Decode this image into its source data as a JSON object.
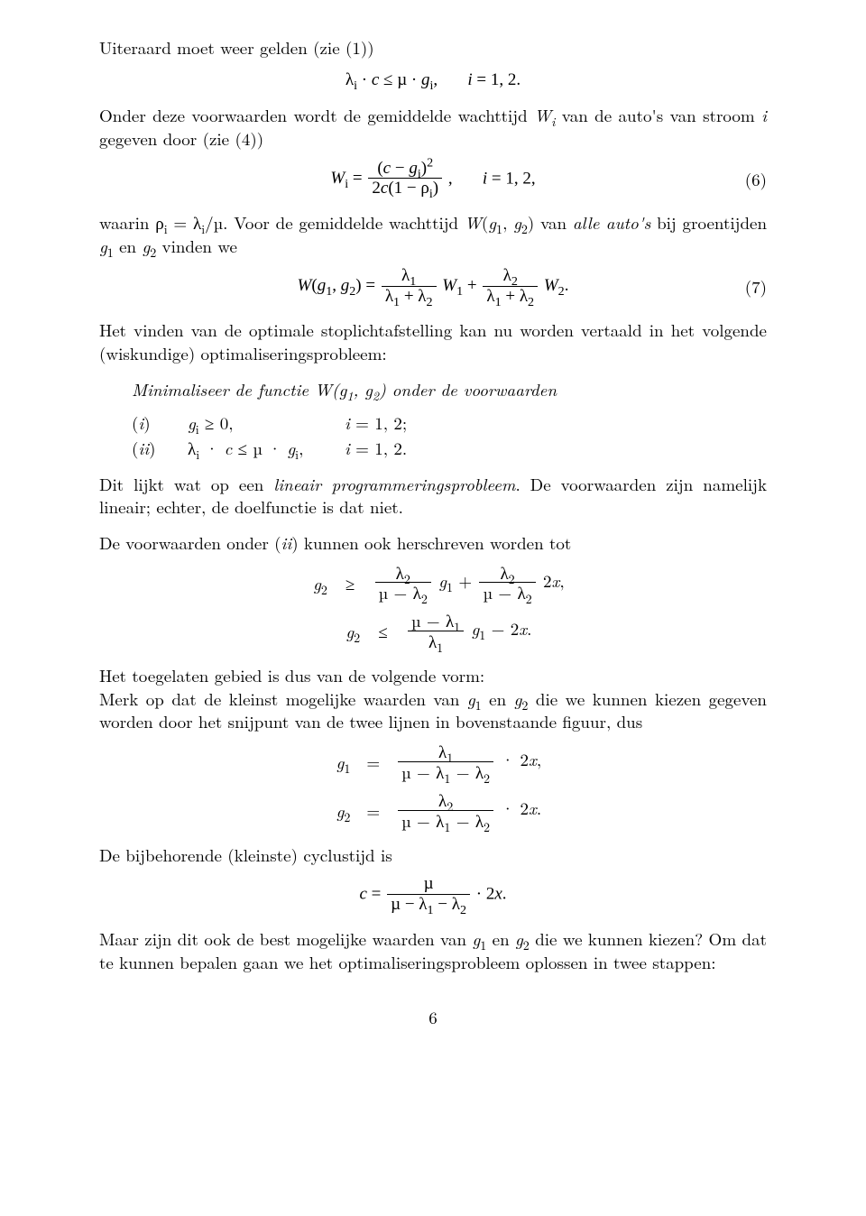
{
  "p1": "Uiteraard moet weer gelden (zie (1))",
  "eq1": {
    "body": "λ<sub>i</sub> · <span class=\"italic\">c</span> ≤ µ · <span class=\"italic\">g</span><sub>i</sub>,&nbsp;&nbsp;&nbsp;&nbsp;&nbsp;&nbsp; <span class=\"italic\">i</span> = 1, 2."
  },
  "p2_pre": "Onder deze voorwaarden wordt de gemiddelde wachttijd ",
  "p2_W": "W<sub>i</sub>",
  "p2_mid": " van de auto's van stroom ",
  "p2_i": "i",
  "p2_post": " gegeven door (zie (4))",
  "eq2": {
    "lhs": "<span class=\"italic\">W</span><sub>i</sub> = ",
    "frac_num": "(<span class=\"italic\">c</span> − <span class=\"italic\">g</span><sub>i</sub>)<sup>2</sup>",
    "frac_den": "2<span class=\"italic\">c</span>(1 − ρ<sub>i</sub>)",
    "rhs": ",&nbsp;&nbsp;&nbsp;&nbsp;&nbsp;&nbsp; <span class=\"italic\">i</span> = 1, 2,",
    "num": "(6)"
  },
  "p3a": "waarin ρ<sub>i</sub> = λ<sub>i</sub>/µ. Voor de gemiddelde wachttijd <span class=\"italic\">W</span>(<span class=\"italic\">g</span><sub>1</sub>, <span class=\"italic\">g</span><sub>2</sub>) van <span class=\"italic\">alle auto's</span> bij groentijden <span class=\"italic\">g</span><sub>1</sub> en <span class=\"italic\">g</span><sub>2</sub> vinden we",
  "eq3": {
    "lhs": "<span class=\"italic\">W</span>(<span class=\"italic\">g</span><sub>1</sub>, <span class=\"italic\">g</span><sub>2</sub>) = ",
    "f1_num": "λ<sub>1</sub>",
    "f1_den": "λ<sub>1</sub> + λ<sub>2</sub>",
    "mid1": "<span class=\"italic\">W</span><sub>1</sub> + ",
    "f2_num": "λ<sub>2</sub>",
    "f2_den": "λ<sub>1</sub> + λ<sub>2</sub>",
    "rhs": "<span class=\"italic\">W</span><sub>2</sub>.",
    "num": "(7)"
  },
  "p4": "Het vinden van de optimale stoplichtafstelling kan nu worden vertaald in het volgende (wiskundige) optimaliseringsprobleem:",
  "minim": "Minimaliseer de functie <span class=\"italic\">W</span>(<span class=\"italic\">g</span><sub>1</sub>, <span class=\"italic\">g</span><sub>2</sub>) onder de voorwaarden",
  "cond": [
    {
      "label": "(<span class=\"italic\">i</span>)",
      "expr": "<span class=\"italic\">g</span><sub>i</sub> ≥ 0,",
      "range": "<span class=\"italic\">i</span> = 1, 2;"
    },
    {
      "label": "(<span class=\"italic\">ii</span>)",
      "expr": "λ<sub>i</sub> · <span class=\"italic\">c</span> ≤ µ · <span class=\"italic\">g</span><sub>i</sub>,",
      "range": "<span class=\"italic\">i</span> = 1, 2."
    }
  ],
  "p5": "Dit lijkt wat op een <span class=\"italic\">lineair programmeringsprobleem</span>. De voorwaarden zijn namelijk lineair; echter, de doelfunctie is dat niet.",
  "p6": "De voorwaarden onder (<span class=\"italic\">ii</span>) kunnen ook herschreven worden tot",
  "eq4": {
    "r1": {
      "l": "<span class=\"italic\">g</span><sub>2</sub>",
      "m": "≥",
      "f1_num": "λ<sub>2</sub>",
      "f1_den": "µ − λ<sub>2</sub>",
      "mid": "<span class=\"italic\">g</span><sub>1</sub> + ",
      "f2_num": "λ<sub>2</sub>",
      "f2_den": "µ − λ<sub>2</sub>",
      "tail": "2<span class=\"italic\">x</span>,"
    },
    "r2": {
      "l": "<span class=\"italic\">g</span><sub>2</sub>",
      "m": "≤",
      "f1_num": "µ − λ<sub>1</sub>",
      "f1_den": "λ<sub>1</sub>",
      "tail": "<span class=\"italic\">g</span><sub>1</sub> − 2<span class=\"italic\">x</span>."
    }
  },
  "p7": "Het toegelaten gebied is dus van de volgende vorm:",
  "p8": "Merk op dat de kleinst mogelijke waarden van <span class=\"italic\">g</span><sub>1</sub> en <span class=\"italic\">g</span><sub>2</sub> die we kunnen kiezen gegeven worden door het snijpunt van de twee lijnen in bovenstaande figuur, dus",
  "eq5": {
    "r1": {
      "l": "<span class=\"italic\">g</span><sub>1</sub>",
      "m": "=",
      "num": "λ<sub>1</sub>",
      "den": "µ − λ<sub>1</sub> − λ<sub>2</sub>",
      "tail": " · 2<span class=\"italic\">x</span>,"
    },
    "r2": {
      "l": "<span class=\"italic\">g</span><sub>2</sub>",
      "m": "=",
      "num": "λ<sub>2</sub>",
      "den": "µ − λ<sub>1</sub> − λ<sub>2</sub>",
      "tail": " · 2<span class=\"italic\">x</span>."
    }
  },
  "p9": "De bijbehorende (kleinste) cyclustijd is",
  "eq6": {
    "lhs": "<span class=\"italic\">c</span> = ",
    "num": "µ",
    "den": "µ − λ<sub>1</sub> − λ<sub>2</sub>",
    "tail": " · 2<span class=\"italic\">x</span>."
  },
  "p10": "Maar zijn dit ook de best mogelijke waarden van <span class=\"italic\">g</span><sub>1</sub> en <span class=\"italic\">g</span><sub>2</sub> die we kunnen kiezen? Om dat te kunnen bepalen gaan we het optimaliseringsprobleem oplossen in twee stappen:",
  "pagenum": "6"
}
